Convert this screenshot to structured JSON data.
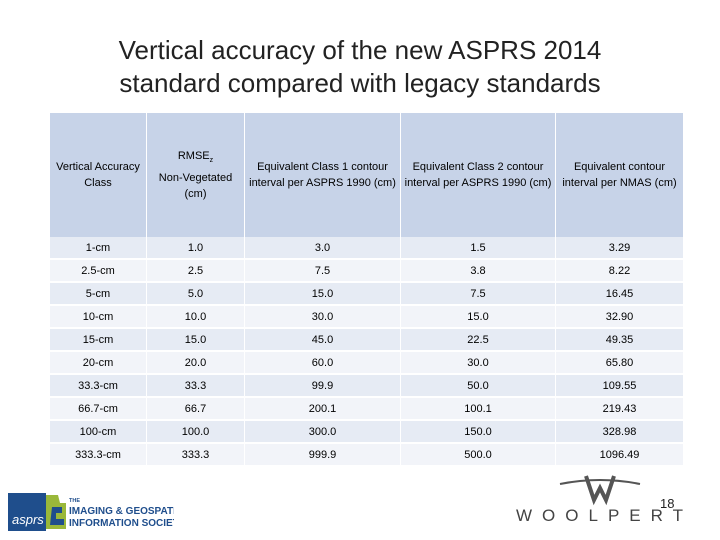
{
  "slide": {
    "title_line1": "Vertical accuracy of the new ASPRS 2014",
    "title_line2": "standard compared with legacy standards",
    "page_number": "18"
  },
  "table": {
    "headers": [
      "Vertical Accuracy Class",
      "RMSEZ Non-Vegetated (cm)",
      "Equivalent Class 1 contour interval per ASPRS 1990 (cm)",
      "Equivalent Class 2 contour interval per ASPRS 1990 (cm)",
      "Equivalent contour interval per NMAS (cm)"
    ],
    "rmse_header": {
      "base": "RMSE",
      "sub": "z",
      "line2": "Non-Vegetated",
      "line3": "(cm)"
    },
    "rows": [
      [
        "1-cm",
        "1.0",
        "3.0",
        "1.5",
        "3.29"
      ],
      [
        "2.5-cm",
        "2.5",
        "7.5",
        "3.8",
        "8.22"
      ],
      [
        "5-cm",
        "5.0",
        "15.0",
        "7.5",
        "16.45"
      ],
      [
        "10-cm",
        "10.0",
        "30.0",
        "15.0",
        "32.90"
      ],
      [
        "15-cm",
        "15.0",
        "45.0",
        "22.5",
        "49.35"
      ],
      [
        "20-cm",
        "20.0",
        "60.0",
        "30.0",
        "65.80"
      ],
      [
        "33.3-cm",
        "33.3",
        "99.9",
        "50.0",
        "109.55"
      ],
      [
        "66.7-cm",
        "66.7",
        "200.1",
        "100.1",
        "219.43"
      ],
      [
        "100-cm",
        "100.0",
        "300.0",
        "150.0",
        "328.98"
      ],
      [
        "333.3-cm",
        "333.3",
        "999.9",
        "500.0",
        "1096.49"
      ]
    ]
  },
  "logos": {
    "asprs_mark": "asprs",
    "asprs_the": "THE",
    "asprs_line1": "IMAGING & GEOSPATIAL",
    "asprs_line2": "INFORMATION SOCIETY",
    "woolpert": "WOOLPERT"
  },
  "colors": {
    "header_bg": "#c7d3e8",
    "row_odd": "#e6ebf4",
    "row_even": "#f2f4f9",
    "asprs_blue": "#1f4e8c",
    "asprs_green": "#9ab83a"
  }
}
